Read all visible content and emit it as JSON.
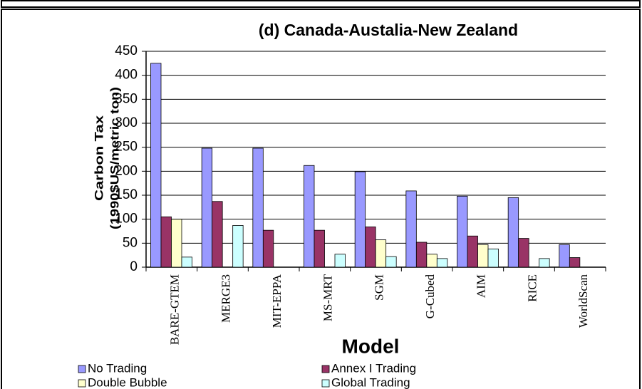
{
  "chart_data": {
    "type": "bar",
    "title": "(d) Canada-Austalia-New  Zealand",
    "y_label": [
      "Carbon Tax",
      "(1990$US/metric ton)"
    ],
    "x_label": "Model",
    "categories": [
      "BARE-GTEM",
      "MERGE3",
      "MIT-EPPA",
      "MS-MRT",
      "SGM",
      "G-Cubed",
      "AIM",
      "RICE",
      "WorldScan"
    ],
    "series": [
      {
        "name": "No Trading",
        "color": "#9999ff",
        "values": [
          425,
          248,
          248,
          212,
          199,
          159,
          148,
          145,
          47
        ]
      },
      {
        "name": "Annex I Trading",
        "color": "#993366",
        "values": [
          105,
          137,
          77,
          77,
          84,
          52,
          65,
          60,
          20
        ]
      },
      {
        "name": "Double Bubble",
        "color": "#ffffcc",
        "values": [
          100,
          null,
          null,
          null,
          57,
          27,
          47,
          null,
          null
        ]
      },
      {
        "name": "Global Trading",
        "color": "#ccffff",
        "values": [
          21,
          87,
          null,
          27,
          22,
          18,
          38,
          18,
          null
        ]
      }
    ],
    "ylim": [
      0,
      450
    ],
    "yticks": [
      0,
      50,
      100,
      150,
      200,
      250,
      300,
      350,
      400,
      450
    ],
    "grid": true,
    "legend": "bottom"
  }
}
